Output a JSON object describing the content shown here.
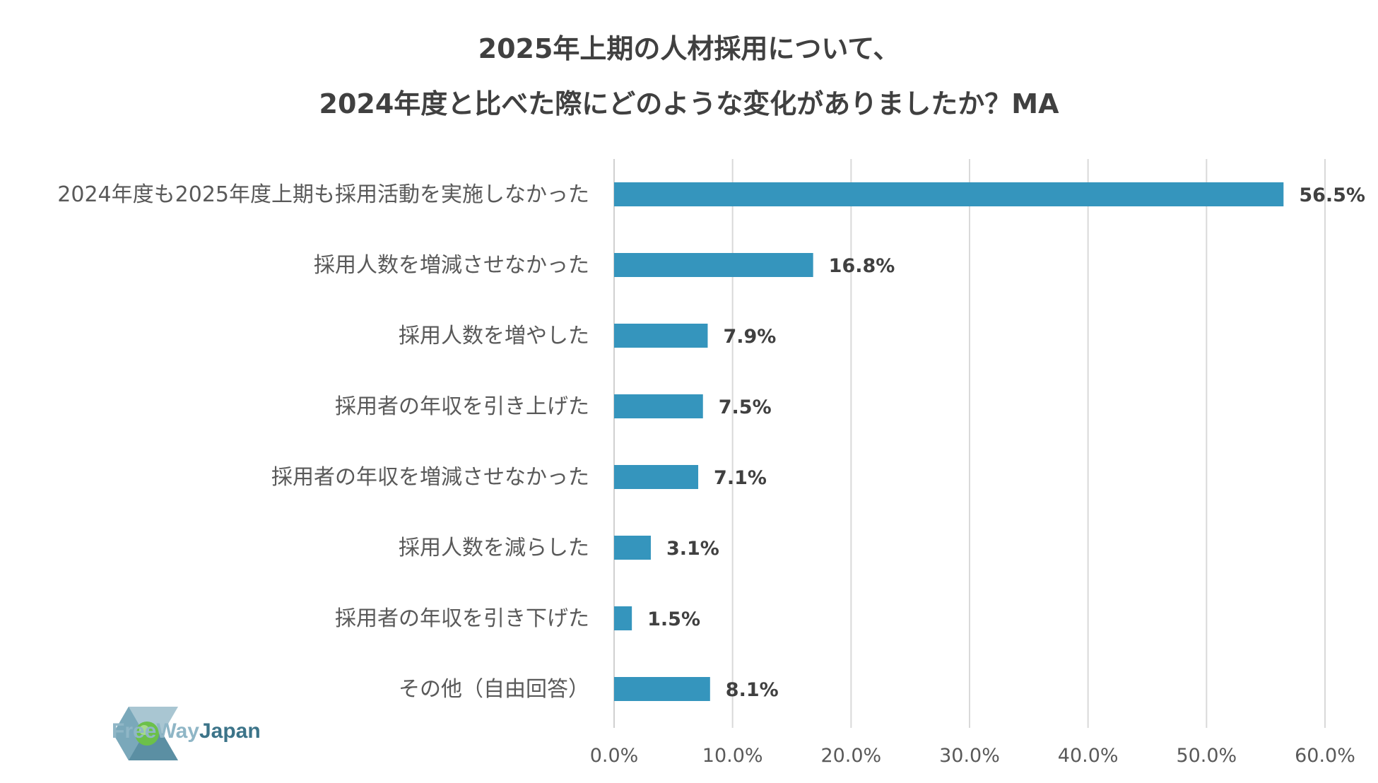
{
  "chart_data": {
    "type": "bar",
    "orientation": "horizontal",
    "title_lines": [
      "2025年上期の人材採用について、",
      "2024年度と比べた際にどのような変化がありましたか？MA"
    ],
    "categories": [
      "2024年度も2025年度上期も採用活動を実施しなかった",
      "採用人数を増減させなかった",
      "採用人数を増やした",
      "採用者の年収を引き上げた",
      "採用者の年収を増減させなかった",
      "採用人数を減らした",
      "採用者の年収を引き下げた",
      "その他（自由回答）"
    ],
    "values": [
      56.5,
      16.8,
      7.9,
      7.5,
      7.1,
      3.1,
      1.5,
      8.1
    ],
    "data_labels": [
      "56.5%",
      "16.8%",
      "7.9%",
      "7.5%",
      "7.1%",
      "3.1%",
      "1.5%",
      "8.1%"
    ],
    "xlim": [
      0,
      60
    ],
    "xticks": [
      0,
      10,
      20,
      30,
      40,
      50,
      60
    ],
    "xtick_labels": [
      "0.0%",
      "10.0%",
      "20.0%",
      "30.0%",
      "40.0%",
      "50.0%",
      "60.0%"
    ],
    "grid": "vertical",
    "legend": "none",
    "bar_color": "#3595bd",
    "grid_color": "#d9d9d9"
  },
  "logo": {
    "text_part1": "FreeWay",
    "text_part2": "Japan",
    "color_light": "#8fb6c6",
    "color_dark": "#3c7489"
  }
}
